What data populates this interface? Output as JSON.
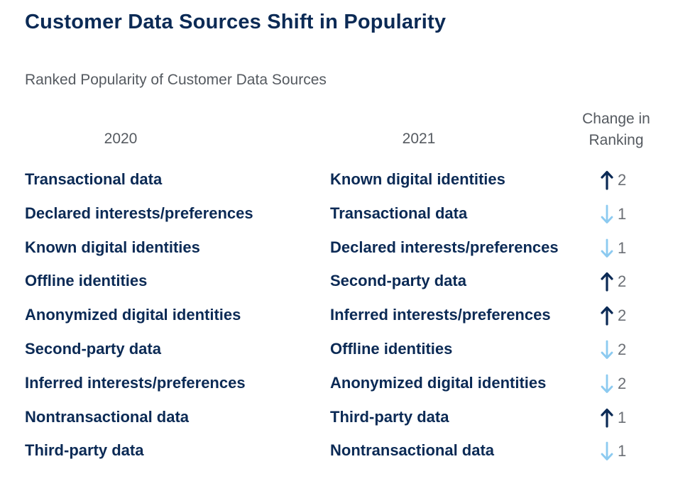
{
  "title": "Customer Data Sources Shift in Popularity",
  "subtitle": "Ranked Popularity of Customer Data Sources",
  "headers": {
    "col_2020": "2020",
    "col_2021": "2021",
    "change_line1": "Change in",
    "change_line2": "Ranking"
  },
  "colors": {
    "text_dark": "#0b2a55",
    "up_arrow": "#0b2a55",
    "down_arrow": "#8ccaf0",
    "muted": "#555a60"
  },
  "chart_data": {
    "type": "table",
    "columns": [
      "2020",
      "2021",
      "Change in Ranking"
    ],
    "rows": [
      {
        "rank_2020": "Transactional data",
        "rank_2021": "Known digital identities",
        "direction": "up",
        "change": "2"
      },
      {
        "rank_2020": "Declared interests/preferences",
        "rank_2021": "Transactional data",
        "direction": "down",
        "change": "1"
      },
      {
        "rank_2020": "Known digital identities",
        "rank_2021": "Declared interests/preferences",
        "direction": "down",
        "change": "1"
      },
      {
        "rank_2020": "Offline identities",
        "rank_2021": "Second-party data",
        "direction": "up",
        "change": "2"
      },
      {
        "rank_2020": "Anonymized digital identities",
        "rank_2021": "Inferred interests/preferences",
        "direction": "up",
        "change": "2"
      },
      {
        "rank_2020": "Second-party data",
        "rank_2021": "Offline identities",
        "direction": "down",
        "change": "2"
      },
      {
        "rank_2020": "Inferred interests/preferences",
        "rank_2021": "Anonymized digital identities",
        "direction": "down",
        "change": "2"
      },
      {
        "rank_2020": "Nontransactional data",
        "rank_2021": "Third-party data",
        "direction": "up",
        "change": "1"
      },
      {
        "rank_2020": "Third-party data",
        "rank_2021": "Nontransactional data",
        "direction": "down",
        "change": "1"
      }
    ]
  }
}
